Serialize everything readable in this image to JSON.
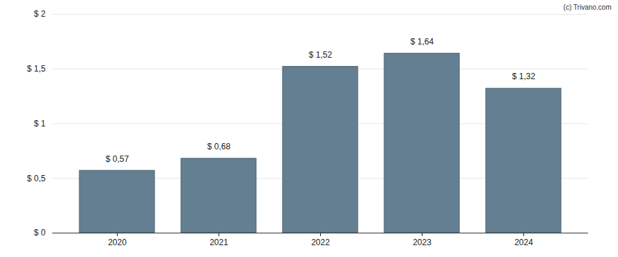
{
  "chart_data": {
    "type": "bar",
    "annotations": [
      "(c) Trivano.com"
    ],
    "categories": [
      "2020",
      "2021",
      "2022",
      "2023",
      "2024"
    ],
    "values": [
      0.57,
      0.68,
      1.52,
      1.64,
      1.32
    ],
    "value_labels": [
      "$ 0,57",
      "$ 0,68",
      "$ 1,52",
      "$ 1,64",
      "$ 1,32"
    ],
    "data_labels": true,
    "color": "#657f92",
    "ylim": [
      0,
      2
    ],
    "yticks": [
      {
        "value": 0,
        "label": "$ 0"
      },
      {
        "value": 0.5,
        "label": "$ 0,5"
      },
      {
        "value": 1,
        "label": "$ 1"
      },
      {
        "value": 1.5,
        "label": "$ 1,5"
      },
      {
        "value": 2,
        "label": "$ 2"
      }
    ],
    "grid": true
  }
}
